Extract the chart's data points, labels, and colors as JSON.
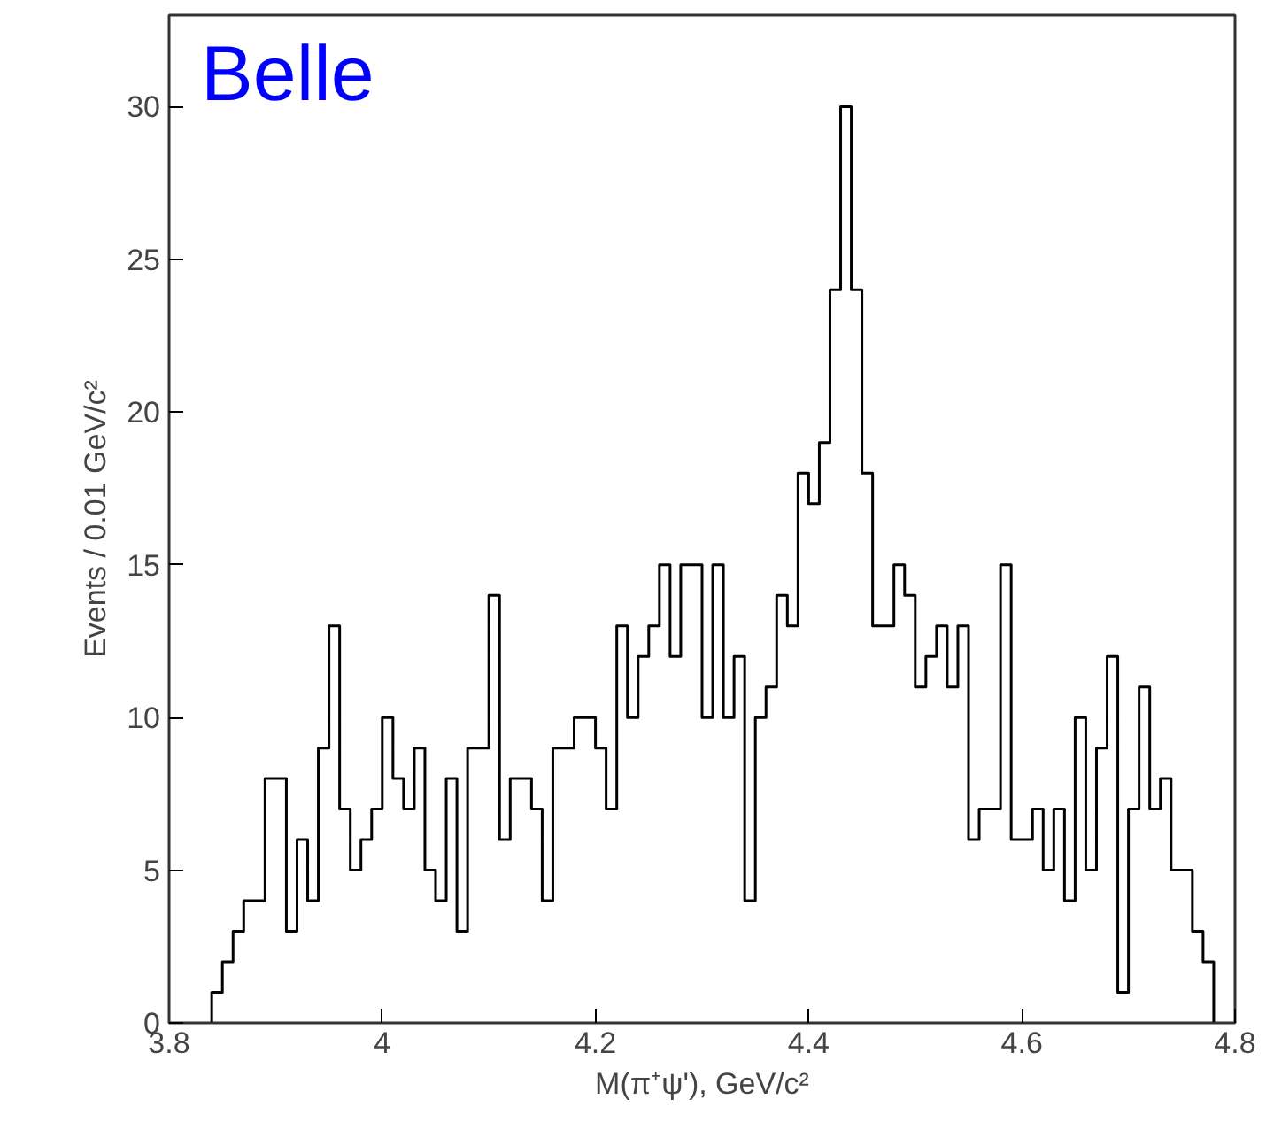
{
  "chart_data": {
    "type": "histogram",
    "xlabel": "M(π⁺ψ'), GeV/c²",
    "ylabel": "Events / 0.01 GeV/c²",
    "annotations": [
      "Belle"
    ],
    "bins": [
      3.84,
      3.85,
      3.86,
      3.87,
      3.88,
      3.89,
      3.9,
      3.91,
      3.92,
      3.93,
      3.94,
      3.95,
      3.96,
      3.97,
      3.98,
      3.99,
      4.0,
      4.01,
      4.02,
      4.03,
      4.04,
      4.05,
      4.06,
      4.07,
      4.08,
      4.09,
      4.1,
      4.11,
      4.12,
      4.13,
      4.14,
      4.15,
      4.16,
      4.17,
      4.18,
      4.19,
      4.2,
      4.21,
      4.22,
      4.23,
      4.24,
      4.25,
      4.26,
      4.27,
      4.28,
      4.29,
      4.3,
      4.31,
      4.32,
      4.33,
      4.34,
      4.35,
      4.36,
      4.37,
      4.38,
      4.39,
      4.4,
      4.41,
      4.42,
      4.43,
      4.44,
      4.45,
      4.46,
      4.47,
      4.48,
      4.49,
      4.5,
      4.51,
      4.52,
      4.53,
      4.54,
      4.55,
      4.56,
      4.57,
      4.58,
      4.59,
      4.6,
      4.61,
      4.62,
      4.63,
      4.64,
      4.65,
      4.66,
      4.67,
      4.68,
      4.69,
      4.7,
      4.71,
      4.72,
      4.73,
      4.74,
      4.75,
      4.76,
      4.77,
      4.78
    ],
    "values": [
      1,
      2,
      3,
      4,
      4,
      8,
      8,
      3,
      6,
      4,
      9,
      13,
      7,
      5,
      6,
      7,
      10,
      8,
      7,
      9,
      5,
      4,
      8,
      3,
      9,
      9,
      14,
      6,
      8,
      8,
      7,
      4,
      9,
      9,
      10,
      10,
      9,
      7,
      13,
      10,
      12,
      13,
      15,
      12,
      15,
      15,
      10,
      15,
      10,
      12,
      4,
      10,
      11,
      14,
      13,
      18,
      17,
      19,
      24,
      30,
      24,
      18,
      13,
      13,
      15,
      14,
      11,
      12,
      13,
      11,
      13,
      6,
      7,
      7,
      15,
      6,
      6,
      7,
      5,
      7,
      4,
      10,
      5,
      9,
      12,
      1,
      7,
      11,
      7,
      8,
      5,
      5,
      3,
      2
    ],
    "color": "#000000",
    "xlim": [
      3.8,
      4.8
    ],
    "xticks": [
      3.8,
      4,
      4.2,
      4.4,
      4.6,
      4.8
    ],
    "ylim": [
      0,
      33
    ],
    "yticks": [
      0,
      5,
      10,
      15,
      20,
      25,
      30
    ]
  }
}
